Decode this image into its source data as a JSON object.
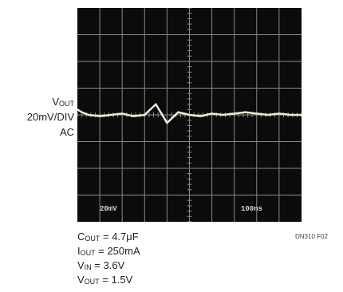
{
  "chart_data": {
    "type": "line",
    "series": [
      {
        "x": [
          0,
          0.2,
          0.5,
          1.0,
          1.5,
          2.0,
          2.5,
          3.0,
          3.5,
          4.0,
          4.5,
          5.0,
          5.5,
          6.0,
          6.5,
          7.0,
          7.5,
          8.0,
          8.5,
          9.0,
          9.5,
          10.0
        ],
        "y": [
          0.2,
          0.1,
          0.0,
          -0.05,
          0.0,
          0.05,
          -0.05,
          0.0,
          0.4,
          -0.3,
          0.1,
          0.0,
          -0.05,
          0.05,
          0.0,
          0.05,
          0.1,
          0.05,
          0.0,
          0.05,
          0.0,
          0.0
        ]
      }
    ],
    "xlim": [
      0,
      10
    ],
    "ylim": [
      -4,
      4
    ],
    "grid": true,
    "y_channel": {
      "label_main": "V",
      "label_sub": "OUT",
      "scale": "20mV/DIV",
      "coupling": "AC"
    },
    "screen_annotations": {
      "left": "20mV",
      "right": "100ns"
    }
  },
  "conditions": [
    {
      "main": "C",
      "sub": "OUT",
      "value": " = 4.7μF"
    },
    {
      "main": "I",
      "sub": "OUT",
      "value": " = 250mA"
    },
    {
      "main": "V",
      "sub": "IN",
      "value": " = 3.6V"
    },
    {
      "main": "V",
      "sub": "OUT",
      "value": " = 1.5V"
    }
  ],
  "figure_id": "DN310 F02",
  "colors": {
    "screen_bg": "#0b0b0b",
    "grid": "#8a8a80",
    "trace": "#efe9d6"
  }
}
